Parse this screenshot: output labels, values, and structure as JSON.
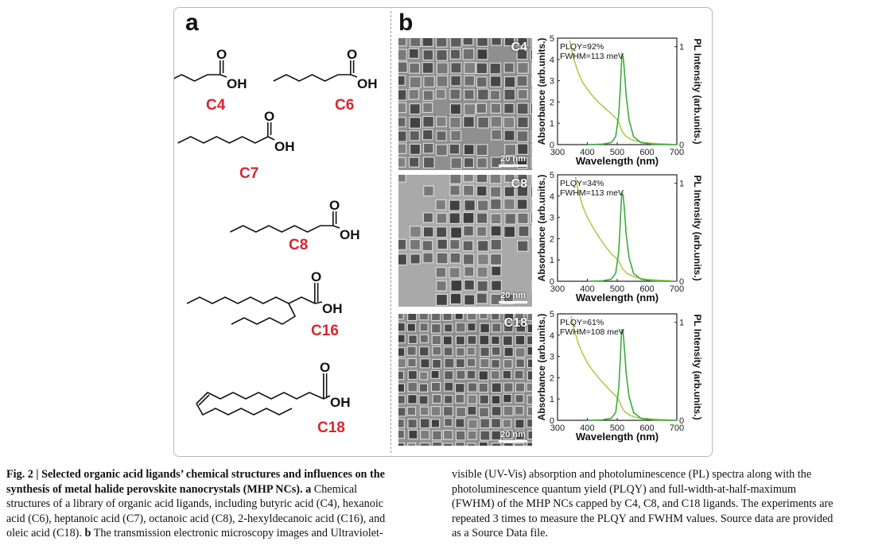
{
  "panel_a": {
    "letter": "a",
    "ligands": [
      {
        "id": "C4",
        "label": "C4",
        "groups": [
          "O",
          "OH"
        ]
      },
      {
        "id": "C6",
        "label": "C6",
        "groups": [
          "O",
          "OH"
        ]
      },
      {
        "id": "C7",
        "label": "C7",
        "groups": [
          "O",
          "OH"
        ]
      },
      {
        "id": "C8",
        "label": "C8",
        "groups": [
          "O",
          "OH"
        ]
      },
      {
        "id": "C16",
        "label": "C16",
        "groups": [
          "O",
          "OH"
        ]
      },
      {
        "id": "C18",
        "label": "C18",
        "groups": [
          "O",
          "OH"
        ]
      }
    ],
    "label_color": "#d8262d"
  },
  "panel_b": {
    "letter": "b",
    "rows": [
      {
        "sample": "C4",
        "scale_bar": "20 nm",
        "plqy": "PLQY=92%",
        "fwhm": "FWHM=113 meV"
      },
      {
        "sample": "C8",
        "scale_bar": "20 nm",
        "plqy": "PLQY=34%",
        "fwhm": "FWHM=113 meV"
      },
      {
        "sample": "C18",
        "scale_bar": "20 nm",
        "plqy": "PLQY=61%",
        "fwhm": "FWHM=108 meV"
      }
    ]
  },
  "chart_data": [
    {
      "type": "line",
      "sample": "C4",
      "xlabel": "Wavelength (nm)",
      "ylabel": "Absorbance (arb.units.)",
      "y2label": "PL Intensity (arb.units.)",
      "xlim": [
        300,
        700
      ],
      "ylim": [
        0,
        5
      ],
      "y2lim": [
        0,
        1
      ],
      "xticks": [
        "300",
        "400",
        "500",
        "600",
        "700"
      ],
      "yticks": [
        "0",
        "1",
        "2",
        "3",
        "4",
        "5"
      ],
      "y2ticks": [
        "0",
        "1"
      ],
      "grid": false,
      "series": [
        {
          "axis": "left",
          "color": "#a8d048",
          "x": [
            340,
            355,
            370,
            385,
            400,
            420,
            440,
            460,
            480,
            495,
            505,
            512,
            520,
            530,
            545,
            560,
            580,
            600,
            640,
            680
          ],
          "y": [
            4.9,
            4.0,
            3.35,
            2.9,
            2.6,
            2.25,
            1.95,
            1.7,
            1.45,
            1.25,
            1.05,
            0.8,
            0.55,
            0.38,
            0.25,
            0.18,
            0.12,
            0.08,
            0.04,
            0.02
          ]
        },
        {
          "axis": "right",
          "color": "#3caa3c",
          "x": [
            400,
            450,
            480,
            495,
            505,
            510,
            513,
            516,
            520,
            525,
            530,
            540,
            555,
            580,
            620,
            660,
            700
          ],
          "y": [
            0,
            0.005,
            0.02,
            0.08,
            0.3,
            0.55,
            0.75,
            0.92,
            0.9,
            0.72,
            0.5,
            0.25,
            0.08,
            0.02,
            0.005,
            0,
            0
          ]
        }
      ]
    },
    {
      "type": "line",
      "sample": "C8",
      "xlabel": "Wavelength (nm)",
      "ylabel": "Absorbance (arb.units.)",
      "y2label": "PL Intensity (arb.units.)",
      "xlim": [
        300,
        700
      ],
      "ylim": [
        0,
        5
      ],
      "y2lim": [
        0,
        1
      ],
      "xticks": [
        "300",
        "400",
        "500",
        "600",
        "700"
      ],
      "yticks": [
        "0",
        "1",
        "2",
        "3",
        "4",
        "5"
      ],
      "y2ticks": [
        "0",
        "1"
      ],
      "grid": false,
      "series": [
        {
          "axis": "left",
          "color": "#a8d048",
          "x": [
            360,
            370,
            385,
            400,
            420,
            440,
            460,
            480,
            495,
            505,
            512,
            520,
            530,
            545,
            560,
            580,
            600,
            640,
            680
          ],
          "y": [
            4.9,
            4.2,
            3.5,
            3.0,
            2.5,
            2.05,
            1.65,
            1.3,
            1.1,
            0.95,
            0.75,
            0.55,
            0.4,
            0.28,
            0.2,
            0.13,
            0.09,
            0.05,
            0.03
          ]
        },
        {
          "axis": "right",
          "color": "#3caa3c",
          "x": [
            400,
            450,
            480,
            495,
            505,
            510,
            513,
            516,
            520,
            525,
            530,
            540,
            555,
            580,
            620,
            660,
            700
          ],
          "y": [
            0,
            0.005,
            0.02,
            0.08,
            0.3,
            0.58,
            0.78,
            0.9,
            0.88,
            0.7,
            0.48,
            0.24,
            0.08,
            0.02,
            0.005,
            0,
            0
          ]
        }
      ]
    },
    {
      "type": "line",
      "sample": "C18",
      "xlabel": "Wavelength (nm)",
      "ylabel": "Absorbance (arb.units.)",
      "y2label": "PL Intensity (arb.units.)",
      "xlim": [
        300,
        700
      ],
      "ylim": [
        0,
        5
      ],
      "y2lim": [
        0,
        1
      ],
      "xticks": [
        "300",
        "400",
        "500",
        "600",
        "700"
      ],
      "yticks": [
        "0",
        "1",
        "2",
        "3",
        "4",
        "5"
      ],
      "y2ticks": [
        "0",
        "1"
      ],
      "grid": false,
      "series": [
        {
          "axis": "left",
          "color": "#a8d048",
          "x": [
            345,
            355,
            370,
            385,
            400,
            420,
            440,
            460,
            480,
            495,
            505,
            512,
            520,
            530,
            545,
            560,
            580,
            600,
            640,
            680
          ],
          "y": [
            4.9,
            4.3,
            3.6,
            3.1,
            2.7,
            2.3,
            1.95,
            1.65,
            1.35,
            1.15,
            0.95,
            0.75,
            0.5,
            0.35,
            0.22,
            0.15,
            0.1,
            0.07,
            0.04,
            0.02
          ]
        },
        {
          "axis": "right",
          "color": "#3caa3c",
          "x": [
            400,
            450,
            480,
            495,
            505,
            510,
            513,
            516,
            520,
            525,
            530,
            540,
            555,
            580,
            620,
            660,
            700
          ],
          "y": [
            0,
            0.005,
            0.02,
            0.08,
            0.32,
            0.6,
            0.82,
            0.93,
            0.9,
            0.7,
            0.48,
            0.24,
            0.08,
            0.02,
            0.005,
            0,
            0
          ]
        }
      ]
    }
  ],
  "caption": {
    "left_lines": [
      [
        {
          "b": true,
          "t": "Fig. 2 | Selected organic acid ligands’ chemical structures and influences on the"
        }
      ],
      [
        {
          "b": true,
          "t": "synthesis of metal halide perovskite nanocrystals (MHP NCs)."
        },
        {
          "b": true,
          "t": " a"
        },
        {
          "b": false,
          "t": " Chemical"
        }
      ],
      [
        {
          "b": false,
          "t": "structures of a library of organic acid ligands, including butyric acid (C4), hexanoic"
        }
      ],
      [
        {
          "b": false,
          "t": "acid (C6), heptanoic acid (C7), octanoic acid (C8), 2-hexyldecanoic acid (C16), and"
        }
      ],
      [
        {
          "b": false,
          "t": "oleic acid (C18). "
        },
        {
          "b": true,
          "t": "b"
        },
        {
          "b": false,
          "t": " The transmission electronic microscopy images and Ultraviolet-"
        }
      ]
    ],
    "right_lines": [
      [
        {
          "b": false,
          "t": "visible (UV-Vis) absorption and photoluminescence (PL) spectra along with the"
        }
      ],
      [
        {
          "b": false,
          "t": "photoluminescence quantum yield (PLQY) and full-width-at-half-maximum"
        }
      ],
      [
        {
          "b": false,
          "t": "(FWHM) of the MHP NCs capped by C4, C8, and C18 ligands. The experiments are"
        }
      ],
      [
        {
          "b": false,
          "t": "repeated 3 times to measure the PLQY and FWHM values. Source data are provided"
        }
      ],
      [
        {
          "b": false,
          "t": "as a Source Data file."
        }
      ]
    ]
  }
}
